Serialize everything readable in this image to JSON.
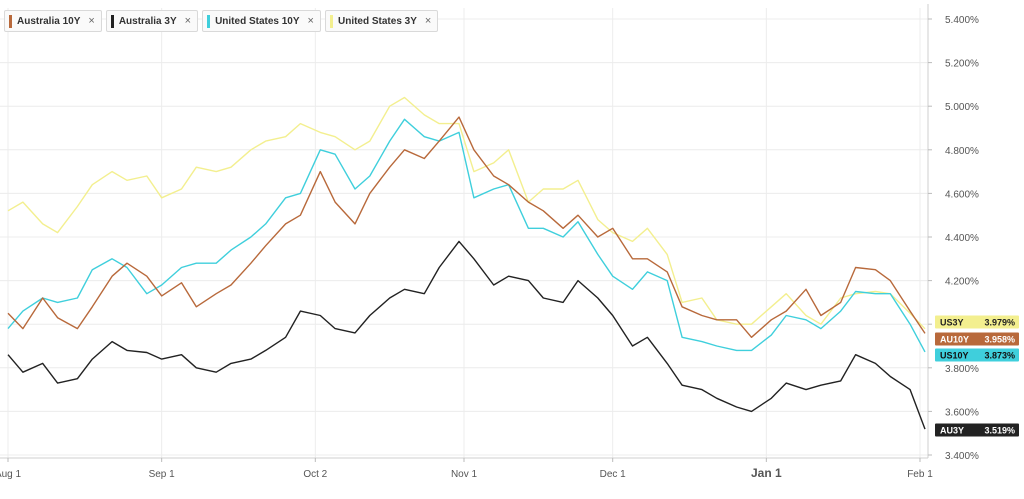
{
  "legend": [
    {
      "label": "Australia 10Y",
      "color": "#b8693b"
    },
    {
      "label": "Australia 3Y",
      "color": "#222222"
    },
    {
      "label": "United States 10Y",
      "color": "#3fcfdc"
    },
    {
      "label": "United States 3Y",
      "color": "#f3ef8f"
    }
  ],
  "remove_glyph": "×",
  "chart_data": {
    "type": "line",
    "title": "",
    "xlabel": "",
    "ylabel": "",
    "ylim": [
      3.4,
      5.5
    ],
    "y_ticks": [
      "5.400%",
      "5.200%",
      "5.000%",
      "4.800%",
      "4.600%",
      "4.400%",
      "4.200%",
      "4.000%",
      "3.800%",
      "3.600%",
      "3.400%"
    ],
    "y_tick_values": [
      5.4,
      5.2,
      5.0,
      4.8,
      4.6,
      4.4,
      4.2,
      4.0,
      3.8,
      3.6,
      3.4
    ],
    "x_range": [
      "2023-08-01",
      "2024-02-02"
    ],
    "x_ticks": [
      {
        "date": "2023-08-01",
        "label": "Aug 1",
        "bold": false
      },
      {
        "date": "2023-09-01",
        "label": "Sep 1",
        "bold": false
      },
      {
        "date": "2023-10-02",
        "label": "Oct 2",
        "bold": false
      },
      {
        "date": "2023-11-01",
        "label": "Nov 1",
        "bold": false
      },
      {
        "date": "2023-12-01",
        "label": "Dec 1",
        "bold": false
      },
      {
        "date": "2024-01-01",
        "label": "Jan 1",
        "bold": true
      },
      {
        "date": "2024-02-01",
        "label": "Feb 1",
        "bold": false
      }
    ],
    "grid": true,
    "legend_position": "top-left",
    "series": [
      {
        "name": "Australia 10Y",
        "badge": "AU10Y",
        "last": "3.958%",
        "color": "#b8693b",
        "points": [
          [
            "2023-08-01",
            4.05
          ],
          [
            "2023-08-04",
            3.98
          ],
          [
            "2023-08-08",
            4.12
          ],
          [
            "2023-08-11",
            4.03
          ],
          [
            "2023-08-15",
            3.98
          ],
          [
            "2023-08-18",
            4.08
          ],
          [
            "2023-08-22",
            4.22
          ],
          [
            "2023-08-25",
            4.28
          ],
          [
            "2023-08-29",
            4.22
          ],
          [
            "2023-09-01",
            4.13
          ],
          [
            "2023-09-05",
            4.19
          ],
          [
            "2023-09-08",
            4.08
          ],
          [
            "2023-09-12",
            4.14
          ],
          [
            "2023-09-15",
            4.18
          ],
          [
            "2023-09-19",
            4.28
          ],
          [
            "2023-09-22",
            4.36
          ],
          [
            "2023-09-26",
            4.46
          ],
          [
            "2023-09-29",
            4.5
          ],
          [
            "2023-10-03",
            4.7
          ],
          [
            "2023-10-06",
            4.56
          ],
          [
            "2023-10-10",
            4.46
          ],
          [
            "2023-10-13",
            4.6
          ],
          [
            "2023-10-17",
            4.72
          ],
          [
            "2023-10-20",
            4.8
          ],
          [
            "2023-10-24",
            4.76
          ],
          [
            "2023-10-27",
            4.84
          ],
          [
            "2023-10-31",
            4.95
          ],
          [
            "2023-11-03",
            4.8
          ],
          [
            "2023-11-07",
            4.68
          ],
          [
            "2023-11-10",
            4.64
          ],
          [
            "2023-11-14",
            4.56
          ],
          [
            "2023-11-17",
            4.52
          ],
          [
            "2023-11-21",
            4.44
          ],
          [
            "2023-11-24",
            4.5
          ],
          [
            "2023-11-28",
            4.4
          ],
          [
            "2023-12-01",
            4.44
          ],
          [
            "2023-12-05",
            4.3
          ],
          [
            "2023-12-08",
            4.3
          ],
          [
            "2023-12-12",
            4.24
          ],
          [
            "2023-12-15",
            4.08
          ],
          [
            "2023-12-19",
            4.04
          ],
          [
            "2023-12-22",
            4.02
          ],
          [
            "2023-12-26",
            4.02
          ],
          [
            "2023-12-29",
            3.94
          ],
          [
            "2024-01-02",
            4.02
          ],
          [
            "2024-01-05",
            4.06
          ],
          [
            "2024-01-09",
            4.16
          ],
          [
            "2024-01-12",
            4.04
          ],
          [
            "2024-01-16",
            4.1
          ],
          [
            "2024-01-19",
            4.26
          ],
          [
            "2024-01-23",
            4.25
          ],
          [
            "2024-01-26",
            4.2
          ],
          [
            "2024-01-30",
            4.06
          ],
          [
            "2024-02-02",
            3.958
          ]
        ]
      },
      {
        "name": "Australia 3Y",
        "badge": "AU3Y",
        "last": "3.519%",
        "color": "#222222",
        "points": [
          [
            "2023-08-01",
            3.86
          ],
          [
            "2023-08-04",
            3.78
          ],
          [
            "2023-08-08",
            3.82
          ],
          [
            "2023-08-11",
            3.73
          ],
          [
            "2023-08-15",
            3.75
          ],
          [
            "2023-08-18",
            3.84
          ],
          [
            "2023-08-22",
            3.92
          ],
          [
            "2023-08-25",
            3.88
          ],
          [
            "2023-08-29",
            3.87
          ],
          [
            "2023-09-01",
            3.84
          ],
          [
            "2023-09-05",
            3.86
          ],
          [
            "2023-09-08",
            3.8
          ],
          [
            "2023-09-12",
            3.78
          ],
          [
            "2023-09-15",
            3.82
          ],
          [
            "2023-09-19",
            3.84
          ],
          [
            "2023-09-22",
            3.88
          ],
          [
            "2023-09-26",
            3.94
          ],
          [
            "2023-09-29",
            4.06
          ],
          [
            "2023-10-03",
            4.04
          ],
          [
            "2023-10-06",
            3.98
          ],
          [
            "2023-10-10",
            3.96
          ],
          [
            "2023-10-13",
            4.04
          ],
          [
            "2023-10-17",
            4.12
          ],
          [
            "2023-10-20",
            4.16
          ],
          [
            "2023-10-24",
            4.14
          ],
          [
            "2023-10-27",
            4.26
          ],
          [
            "2023-10-31",
            4.38
          ],
          [
            "2023-11-03",
            4.3
          ],
          [
            "2023-11-07",
            4.18
          ],
          [
            "2023-11-10",
            4.22
          ],
          [
            "2023-11-14",
            4.2
          ],
          [
            "2023-11-17",
            4.12
          ],
          [
            "2023-11-21",
            4.1
          ],
          [
            "2023-11-24",
            4.2
          ],
          [
            "2023-11-28",
            4.12
          ],
          [
            "2023-12-01",
            4.04
          ],
          [
            "2023-12-05",
            3.9
          ],
          [
            "2023-12-08",
            3.94
          ],
          [
            "2023-12-12",
            3.82
          ],
          [
            "2023-12-15",
            3.72
          ],
          [
            "2023-12-19",
            3.7
          ],
          [
            "2023-12-22",
            3.66
          ],
          [
            "2023-12-26",
            3.62
          ],
          [
            "2023-12-29",
            3.6
          ],
          [
            "2024-01-02",
            3.66
          ],
          [
            "2024-01-05",
            3.73
          ],
          [
            "2024-01-09",
            3.7
          ],
          [
            "2024-01-12",
            3.72
          ],
          [
            "2024-01-16",
            3.74
          ],
          [
            "2024-01-19",
            3.86
          ],
          [
            "2024-01-23",
            3.82
          ],
          [
            "2024-01-26",
            3.76
          ],
          [
            "2024-01-30",
            3.7
          ],
          [
            "2024-02-02",
            3.519
          ]
        ]
      },
      {
        "name": "United States 10Y",
        "badge": "US10Y",
        "last": "3.873%",
        "color": "#3fcfdc",
        "points": [
          [
            "2023-08-01",
            3.98
          ],
          [
            "2023-08-04",
            4.06
          ],
          [
            "2023-08-08",
            4.12
          ],
          [
            "2023-08-11",
            4.1
          ],
          [
            "2023-08-15",
            4.12
          ],
          [
            "2023-08-18",
            4.25
          ],
          [
            "2023-08-22",
            4.3
          ],
          [
            "2023-08-25",
            4.26
          ],
          [
            "2023-08-29",
            4.14
          ],
          [
            "2023-09-01",
            4.18
          ],
          [
            "2023-09-05",
            4.26
          ],
          [
            "2023-09-08",
            4.28
          ],
          [
            "2023-09-12",
            4.28
          ],
          [
            "2023-09-15",
            4.34
          ],
          [
            "2023-09-19",
            4.4
          ],
          [
            "2023-09-22",
            4.46
          ],
          [
            "2023-09-26",
            4.58
          ],
          [
            "2023-09-29",
            4.6
          ],
          [
            "2023-10-03",
            4.8
          ],
          [
            "2023-10-06",
            4.78
          ],
          [
            "2023-10-10",
            4.62
          ],
          [
            "2023-10-13",
            4.68
          ],
          [
            "2023-10-17",
            4.84
          ],
          [
            "2023-10-20",
            4.94
          ],
          [
            "2023-10-24",
            4.86
          ],
          [
            "2023-10-27",
            4.84
          ],
          [
            "2023-10-31",
            4.88
          ],
          [
            "2023-11-03",
            4.58
          ],
          [
            "2023-11-07",
            4.62
          ],
          [
            "2023-11-10",
            4.64
          ],
          [
            "2023-11-14",
            4.44
          ],
          [
            "2023-11-17",
            4.44
          ],
          [
            "2023-11-21",
            4.4
          ],
          [
            "2023-11-24",
            4.47
          ],
          [
            "2023-11-28",
            4.32
          ],
          [
            "2023-12-01",
            4.22
          ],
          [
            "2023-12-05",
            4.16
          ],
          [
            "2023-12-08",
            4.24
          ],
          [
            "2023-12-12",
            4.2
          ],
          [
            "2023-12-15",
            3.94
          ],
          [
            "2023-12-19",
            3.92
          ],
          [
            "2023-12-22",
            3.9
          ],
          [
            "2023-12-26",
            3.88
          ],
          [
            "2023-12-29",
            3.88
          ],
          [
            "2024-01-02",
            3.95
          ],
          [
            "2024-01-05",
            4.04
          ],
          [
            "2024-01-09",
            4.02
          ],
          [
            "2024-01-12",
            3.98
          ],
          [
            "2024-01-16",
            4.06
          ],
          [
            "2024-01-19",
            4.15
          ],
          [
            "2024-01-23",
            4.14
          ],
          [
            "2024-01-26",
            4.14
          ],
          [
            "2024-01-30",
            4.0
          ],
          [
            "2024-02-02",
            3.873
          ]
        ]
      },
      {
        "name": "United States 3Y",
        "badge": "US3Y",
        "last": "3.979%",
        "color": "#f3ef8f",
        "points": [
          [
            "2023-08-01",
            4.52
          ],
          [
            "2023-08-04",
            4.56
          ],
          [
            "2023-08-08",
            4.46
          ],
          [
            "2023-08-11",
            4.42
          ],
          [
            "2023-08-15",
            4.54
          ],
          [
            "2023-08-18",
            4.64
          ],
          [
            "2023-08-22",
            4.7
          ],
          [
            "2023-08-25",
            4.66
          ],
          [
            "2023-08-29",
            4.68
          ],
          [
            "2023-09-01",
            4.58
          ],
          [
            "2023-09-05",
            4.62
          ],
          [
            "2023-09-08",
            4.72
          ],
          [
            "2023-09-12",
            4.7
          ],
          [
            "2023-09-15",
            4.72
          ],
          [
            "2023-09-19",
            4.8
          ],
          [
            "2023-09-22",
            4.84
          ],
          [
            "2023-09-26",
            4.86
          ],
          [
            "2023-09-29",
            4.92
          ],
          [
            "2023-10-03",
            4.88
          ],
          [
            "2023-10-06",
            4.86
          ],
          [
            "2023-10-10",
            4.8
          ],
          [
            "2023-10-13",
            4.84
          ],
          [
            "2023-10-17",
            5.0
          ],
          [
            "2023-10-20",
            5.04
          ],
          [
            "2023-10-24",
            4.96
          ],
          [
            "2023-10-27",
            4.92
          ],
          [
            "2023-10-31",
            4.92
          ],
          [
            "2023-11-03",
            4.7
          ],
          [
            "2023-11-07",
            4.74
          ],
          [
            "2023-11-10",
            4.8
          ],
          [
            "2023-11-14",
            4.56
          ],
          [
            "2023-11-17",
            4.62
          ],
          [
            "2023-11-21",
            4.62
          ],
          [
            "2023-11-24",
            4.66
          ],
          [
            "2023-11-28",
            4.48
          ],
          [
            "2023-12-01",
            4.42
          ],
          [
            "2023-12-05",
            4.38
          ],
          [
            "2023-12-08",
            4.44
          ],
          [
            "2023-12-12",
            4.32
          ],
          [
            "2023-12-15",
            4.1
          ],
          [
            "2023-12-19",
            4.12
          ],
          [
            "2023-12-22",
            4.02
          ],
          [
            "2023-12-26",
            4.0
          ],
          [
            "2023-12-29",
            4.0
          ],
          [
            "2024-01-02",
            4.08
          ],
          [
            "2024-01-05",
            4.14
          ],
          [
            "2024-01-09",
            4.04
          ],
          [
            "2024-01-12",
            4.0
          ],
          [
            "2024-01-16",
            4.12
          ],
          [
            "2024-01-19",
            4.14
          ],
          [
            "2024-01-23",
            4.15
          ],
          [
            "2024-01-26",
            4.14
          ],
          [
            "2024-01-30",
            4.05
          ],
          [
            "2024-02-02",
            3.979
          ]
        ]
      }
    ]
  }
}
